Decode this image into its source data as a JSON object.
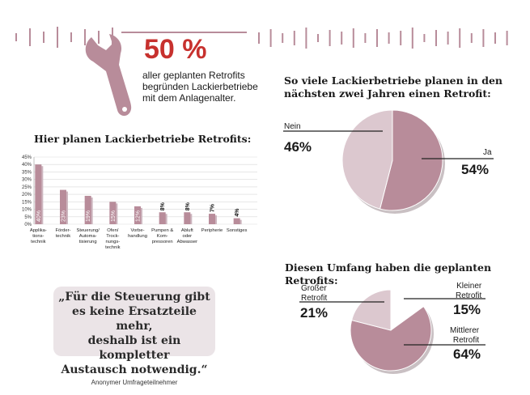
{
  "highlight": {
    "value": "50 %",
    "text_lines": [
      "aller geplanten Retrofits",
      "begründen Lackierbetriebe",
      "mit dem Anlagenalter."
    ]
  },
  "bar_section": {
    "title": "Hier planen Lackierbetriebe Retrofits:"
  },
  "pie1_section": {
    "title_lines": [
      "So viele Lackierbetriebe planen in den",
      "nächsten zwei Jahren einen Retrofit:"
    ],
    "nein_label": "Nein",
    "nein_value": "46%",
    "ja_label": "Ja",
    "ja_value": "54%"
  },
  "pie2_section": {
    "title": "Diesen Umfang haben die geplanten Retrofits:",
    "gross_label_1": "Großer",
    "gross_label_2": "Retrofit",
    "gross_value": "21%",
    "klein_label_1": "Kleiner",
    "klein_label_2": "Retrofit",
    "klein_value": "15%",
    "mittel_label_1": "Mittlerer",
    "mittel_label_2": "Retrofit",
    "mittel_value": "64%"
  },
  "quote": {
    "lines": [
      "„Für die Steuerung gibt",
      "es keine Ersatzteile mehr,",
      "deshalb ist ein kompletter",
      "Austausch notwendig.“"
    ],
    "source": "Anonymer Umfrageteilnehmer"
  },
  "colors": {
    "accent_red": "#c7312e",
    "bar_fill": "#b88c9a",
    "pie_dark": "#b88c9a",
    "pie_light": "#dcc8cf"
  },
  "chart_data": [
    {
      "type": "bar",
      "categories": [
        "Applika-tions-technik",
        "Förder-technik",
        "Steuerung/Automa-tisierung",
        "Ofen/Trock-nungs-technik",
        "Vorbe-handlung",
        "Pumpen & Kom-pressoren",
        "Abluft oder Abwasser",
        "Peripherie",
        "Sonstiges"
      ],
      "category_lines": [
        [
          "Applika-",
          "tions-",
          "technik"
        ],
        [
          "Förder-",
          "technik"
        ],
        [
          "Steuerung/",
          "Automa-",
          "tisierung"
        ],
        [
          "Ofen/",
          "Trock-",
          "nungs-",
          "technik"
        ],
        [
          "Vorbe-",
          "handlung"
        ],
        [
          "Pumpen &",
          "Kom-",
          "pressoren"
        ],
        [
          "Abluft",
          "oder",
          "Abwasser"
        ],
        [
          "Peripherie"
        ],
        [
          "Sonstiges"
        ]
      ],
      "values": [
        40,
        23,
        19,
        15,
        12,
        8,
        8,
        7,
        4
      ],
      "value_labels": [
        "40%",
        "23%",
        "19%",
        "15%",
        "12%",
        "8%",
        "8%",
        "7%",
        "4%"
      ],
      "yticks": [
        "0%",
        "5%",
        "10%",
        "15%",
        "20%",
        "25%",
        "30%",
        "35%",
        "40%",
        "45%"
      ],
      "ylim": [
        0,
        45
      ],
      "grid": true
    },
    {
      "type": "pie",
      "labels": [
        "Ja",
        "Nein"
      ],
      "values": [
        54,
        46
      ]
    },
    {
      "type": "pie",
      "labels": [
        "Kleiner Retrofit",
        "Mittlerer Retrofit",
        "Großer Retrofit"
      ],
      "values": [
        15,
        64,
        21
      ]
    }
  ]
}
